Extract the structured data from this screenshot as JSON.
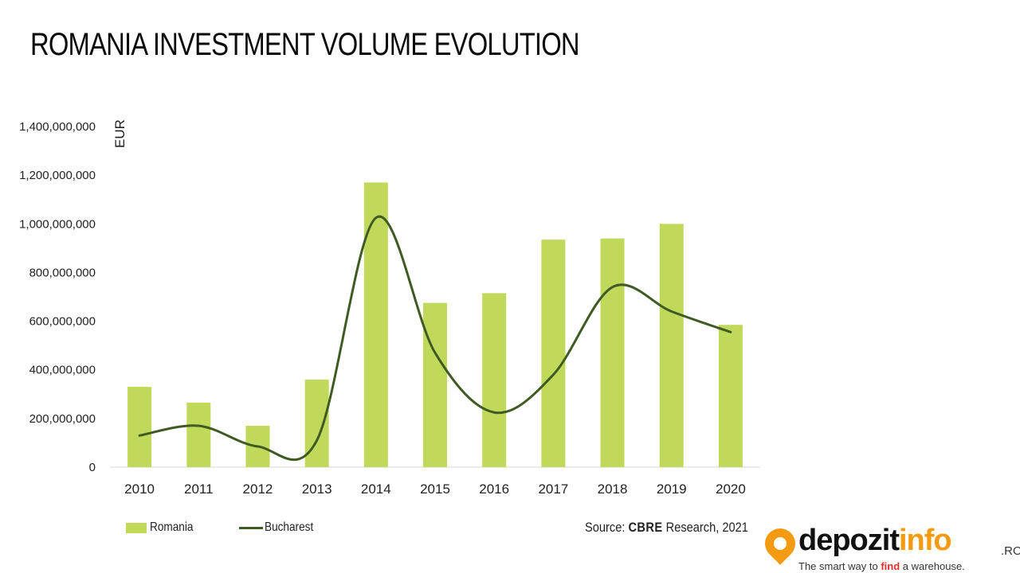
{
  "title": "ROMANIA INVESTMENT VOLUME EVOLUTION",
  "colors": {
    "romania": "#c0d95a",
    "bucharest": "#3f5a22",
    "axis": "#d9d9d9"
  },
  "chart_data": {
    "type": "bar",
    "title": "ROMANIA INVESTMENT VOLUME EVOLUTION",
    "ylabel": "EUR",
    "xlabel": "",
    "ylim": [
      0,
      1400000000
    ],
    "yticks": [
      0,
      200000000,
      400000000,
      600000000,
      800000000,
      1000000000,
      1200000000,
      1400000000
    ],
    "ytick_labels": [
      "0",
      "200,000,000",
      "400,000,000",
      "600,000,000",
      "800,000,000",
      "1,000,000,000",
      "1,200,000,000",
      "1,400,000,000"
    ],
    "categories": [
      "2010",
      "2011",
      "2012",
      "2013",
      "2014",
      "2015",
      "2016",
      "2017",
      "2018",
      "2019",
      "2020"
    ],
    "series": [
      {
        "name": "Romania",
        "type": "bar",
        "values": [
          330000000,
          265000000,
          170000000,
          360000000,
          1170000000,
          675000000,
          715000000,
          935000000,
          940000000,
          1000000000,
          585000000
        ]
      },
      {
        "name": "Bucharest",
        "type": "line",
        "values": [
          130000000,
          170000000,
          85000000,
          110000000,
          1025000000,
          470000000,
          225000000,
          380000000,
          740000000,
          640000000,
          555000000
        ]
      }
    ],
    "legend": "bottom-left",
    "grid": false
  },
  "legend": {
    "romania": "Romania",
    "bucharest": "Bucharest"
  },
  "source": {
    "prefix": "Source: ",
    "brand": "CBRE",
    "suffix": " Research, 2021"
  },
  "logo": {
    "part1": "depozit",
    "part2": "info",
    "suffix": ".RO",
    "tagline_a": "The smart way to ",
    "tagline_b": "find",
    "tagline_c": " a warehouse."
  }
}
